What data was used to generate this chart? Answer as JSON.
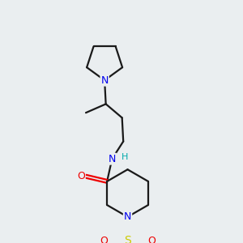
{
  "background_color": "#eaeef0",
  "bond_color": "#1a1a1a",
  "atom_colors": {
    "N": "#0000ee",
    "O": "#ee0000",
    "S": "#cccc00",
    "H": "#00aaaa"
  },
  "bond_lw": 1.6,
  "figsize": [
    3.0,
    3.0
  ],
  "dpi": 100
}
